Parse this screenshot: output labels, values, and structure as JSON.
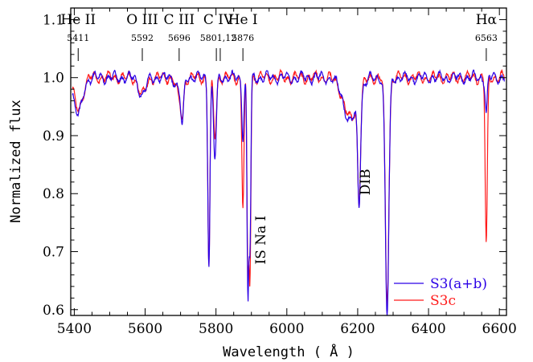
{
  "chart_data": {
    "type": "line",
    "title": "",
    "xlabel": "Wavelength ( Å )",
    "ylabel": "Normalized flux",
    "xlim": [
      5390,
      6620
    ],
    "ylim": [
      0.59,
      1.12
    ],
    "x_ticks": [
      5400,
      5600,
      5800,
      6000,
      6200,
      6400,
      6600
    ],
    "x_tick_labels": [
      "5400",
      "5600",
      "5800",
      "6000",
      "6200",
      "6400",
      "6600"
    ],
    "y_ticks": [
      0.6,
      0.7,
      0.8,
      0.9,
      1.0,
      1.1
    ],
    "y_tick_labels": [
      "0.6",
      "0.7",
      "0.8",
      "0.9",
      "1.0",
      "1.1"
    ],
    "x_minor_step": 50,
    "y_minor_step": 0.02,
    "grid": false,
    "legend_position": "bottom-right",
    "continuum_level": 1.0,
    "line_ids": [
      {
        "ion": "He  II",
        "wavelength": "5411",
        "x": 5411
      },
      {
        "ion": "O  III",
        "wavelength": "5592",
        "x": 5592
      },
      {
        "ion": "C  III",
        "wavelength": "5696",
        "x": 5696
      },
      {
        "ion": "C  IV",
        "wavelength": "5801,12",
        "x": [
          5801,
          5812
        ]
      },
      {
        "ion": "He  I",
        "wavelength": "5876",
        "x": 5876
      },
      {
        "ion": "Hα",
        "wavelength": "6563",
        "x": 6563
      }
    ],
    "annotations": [
      {
        "text": "IS Na I",
        "x": 5905,
        "y": 0.72
      },
      {
        "text": "DIB",
        "x": 6200,
        "y": 0.82
      }
    ],
    "absorption_features": [
      {
        "x": 5411,
        "width": 12,
        "depth_s3ab": 0.065,
        "depth_s3c": 0.055
      },
      {
        "x": 5592,
        "width": 10,
        "depth_s3ab": 0.03,
        "depth_s3c": 0.03
      },
      {
        "x": 5696,
        "width": 8,
        "depth_s3ab": 0.02,
        "depth_s3c": 0.035
      },
      {
        "x": 5705,
        "width": 4,
        "depth_s3ab": 0.075,
        "depth_s3c": 0.05
      },
      {
        "x": 5780,
        "width": 3,
        "depth_s3ab": 0.32,
        "depth_s3c": 0.32
      },
      {
        "x": 5797,
        "width": 4,
        "depth_s3ab": 0.14,
        "depth_s3c": 0.1
      },
      {
        "x": 5876,
        "width": 3,
        "depth_s3ab": 0.1,
        "depth_s3c": 0.22
      },
      {
        "x": 5890,
        "width": 2.5,
        "depth_s3ab": 0.37,
        "depth_s3c": 0.33
      },
      {
        "x": 5896,
        "width": 2.5,
        "depth_s3ab": 0.28,
        "depth_s3c": 0.33
      },
      {
        "x": 6180,
        "width": 20,
        "depth_s3ab": 0.075,
        "depth_s3c": 0.07
      },
      {
        "x": 6204,
        "width": 4,
        "depth_s3ab": 0.18,
        "depth_s3c": 0.18
      },
      {
        "x": 6283,
        "width": 5,
        "depth_s3ab": 0.41,
        "depth_s3c": 0.39
      },
      {
        "x": 6563,
        "width": 3,
        "depth_s3ab": 0.06,
        "depth_s3c": 0.29
      }
    ],
    "series": [
      {
        "name": "S3(a+b)",
        "color": "#2b00e6"
      },
      {
        "name": "S3c",
        "color": "#ff1a1a"
      }
    ]
  }
}
